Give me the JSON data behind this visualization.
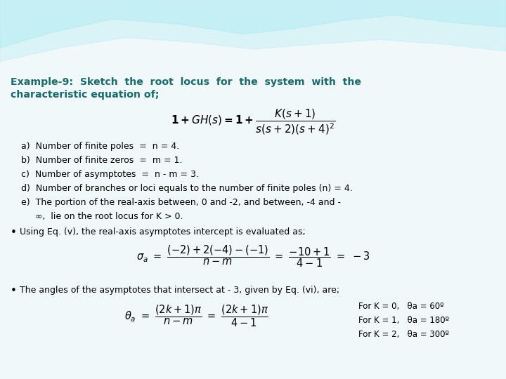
{
  "title_line1": "Example-9:  Sketch  the  root  locus  for  the  system  with  the",
  "title_line2": "characteristic equation of;",
  "title_color": "#1a6b6b",
  "bg_main_color": "#f0f8fa",
  "wave_color1": "#4dc0cc",
  "wave_color2": "#7dd8e0",
  "wave_color3": "#ffffff",
  "items_a": "a)  Number of finite poles  =  n = 4.",
  "items_b": "b)  Number of finite zeros  =  m = 1.",
  "items_c": "c)  Number of asymptotes  =  n - m = 3.",
  "items_d": "d)  Number of branches or loci equals to the number of finite poles (n) = 4.",
  "items_e1": "e)  The portion of the real-axis between, 0 and -2, and between, -4 and -",
  "items_e2": "     ∞,  lie on the root locus for K > 0.",
  "bullet1": "Using Eq. (v), the real-axis asymptotes intercept is evaluated as;",
  "bullet2": "The angles of the asymptotes that intersect at - 3, given by Eq. (vi), are;",
  "angles": [
    "For K = 0,   θa = 60º",
    "For K = 1,   θa = 180º",
    "For K = 2,   θa = 300º"
  ]
}
